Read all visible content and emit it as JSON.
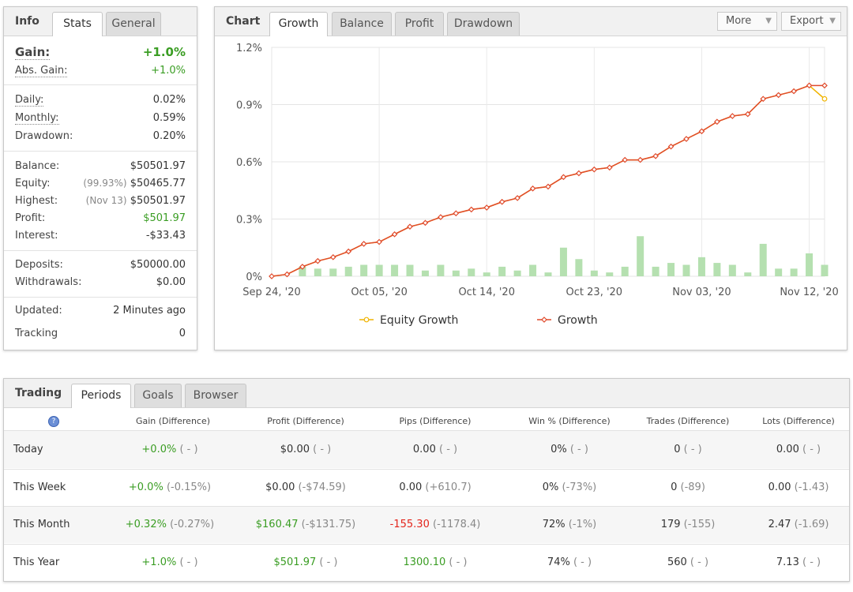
{
  "info": {
    "title": "Info",
    "tabs": [
      "Stats",
      "General"
    ],
    "gain_label": "Gain:",
    "gain_value": "+1.0%",
    "abs_gain_label": "Abs. Gain:",
    "abs_gain_value": "+1.0%",
    "daily_label": "Daily:",
    "daily_value": "0.02%",
    "monthly_label": "Monthly:",
    "monthly_value": "0.59%",
    "drawdown_label": "Drawdown:",
    "drawdown_value": "0.20%",
    "balance_label": "Balance:",
    "balance_value": "$50501.97",
    "equity_label": "Equity:",
    "equity_pct": "(99.93%)",
    "equity_value": "$50465.77",
    "highest_label": "Highest:",
    "highest_date": "(Nov 13)",
    "highest_value": "$50501.97",
    "profit_label": "Profit:",
    "profit_value": "$501.97",
    "interest_label": "Interest:",
    "interest_value": "-$33.43",
    "deposits_label": "Deposits:",
    "deposits_value": "$50000.00",
    "withdrawals_label": "Withdrawals:",
    "withdrawals_value": "$0.00",
    "updated_label": "Updated:",
    "updated_value": "2 Minutes ago",
    "tracking_label": "Tracking",
    "tracking_value": "0"
  },
  "chart_panel": {
    "title": "Chart",
    "tabs": [
      "Growth",
      "Balance",
      "Profit",
      "Drawdown"
    ],
    "more_label": "More",
    "export_label": "Export"
  },
  "chart_data": {
    "type": "line",
    "y_ticks": [
      "1.2%",
      "0.9%",
      "0.6%",
      "0.3%",
      "0%"
    ],
    "ylim": [
      0,
      1.2
    ],
    "x_tick_labels": [
      "Sep 24, '20",
      "Oct 05, '20",
      "Oct 14, '20",
      "Oct 23, '20",
      "Nov 03, '20",
      "Nov 12, '20"
    ],
    "grid": true,
    "legend_position": "bottom",
    "series": [
      {
        "name": "Equity Growth",
        "color": "#f0b400",
        "values": [
          0.0,
          0.01,
          0.05,
          0.08,
          0.1,
          0.13,
          0.17,
          0.18,
          0.22,
          0.26,
          0.28,
          0.31,
          0.33,
          0.35,
          0.36,
          0.39,
          0.41,
          0.46,
          0.47,
          0.52,
          0.54,
          0.56,
          0.57,
          0.61,
          0.61,
          0.63,
          0.68,
          0.72,
          0.76,
          0.81,
          0.84,
          0.85,
          0.93,
          0.95,
          0.97,
          1.0,
          0.93
        ]
      },
      {
        "name": "Growth",
        "color": "#e04a2b",
        "values": [
          0.0,
          0.01,
          0.05,
          0.08,
          0.1,
          0.13,
          0.17,
          0.18,
          0.22,
          0.26,
          0.28,
          0.31,
          0.33,
          0.35,
          0.36,
          0.39,
          0.41,
          0.46,
          0.47,
          0.52,
          0.54,
          0.56,
          0.57,
          0.61,
          0.61,
          0.63,
          0.68,
          0.72,
          0.76,
          0.81,
          0.84,
          0.85,
          0.93,
          0.95,
          0.97,
          1.0,
          1.0
        ]
      }
    ],
    "bars": {
      "color": "#b5e0b0",
      "values": [
        0.0,
        0.0,
        0.05,
        0.04,
        0.04,
        0.05,
        0.06,
        0.06,
        0.06,
        0.06,
        0.03,
        0.06,
        0.03,
        0.04,
        0.02,
        0.05,
        0.03,
        0.06,
        0.02,
        0.15,
        0.09,
        0.03,
        0.02,
        0.05,
        0.21,
        0.05,
        0.07,
        0.06,
        0.1,
        0.07,
        0.06,
        0.02,
        0.17,
        0.04,
        0.04,
        0.12,
        0.06
      ]
    }
  },
  "trading": {
    "title": "Trading",
    "tabs": [
      "Periods",
      "Goals",
      "Browser"
    ],
    "help_icon": "?",
    "headers": [
      "Gain (Difference)",
      "Profit (Difference)",
      "Pips (Difference)",
      "Win % (Difference)",
      "Trades (Difference)",
      "Lots (Difference)"
    ],
    "rows": [
      {
        "period": "Today",
        "gain": "+0.0%",
        "gain_diff": "( - )",
        "profit": "$0.00",
        "profit_diff": "( - )",
        "pips": "0.00",
        "pips_diff": "( - )",
        "win": "0%",
        "win_diff": "( - )",
        "trades": "0",
        "trades_diff": "( - )",
        "lots": "0.00",
        "lots_diff": "( - )"
      },
      {
        "period": "This Week",
        "gain": "+0.0%",
        "gain_diff": "(-0.15%)",
        "profit": "$0.00",
        "profit_diff": "(-$74.59)",
        "pips": "0.00",
        "pips_diff": "(+610.7)",
        "win": "0%",
        "win_diff": "(-73%)",
        "trades": "0",
        "trades_diff": "(-89)",
        "lots": "0.00",
        "lots_diff": "(-1.43)"
      },
      {
        "period": "This Month",
        "gain": "+0.32%",
        "gain_diff": "(-0.27%)",
        "profit": "$160.47",
        "profit_diff": "(-$131.75)",
        "pips": "-155.30",
        "pips_diff": "(-1178.4)",
        "win": "72%",
        "win_diff": "(-1%)",
        "trades": "179",
        "trades_diff": "(-155)",
        "lots": "2.47",
        "lots_diff": "(-1.69)"
      },
      {
        "period": "This Year",
        "gain": "+1.0%",
        "gain_diff": "( - )",
        "profit": "$501.97",
        "profit_diff": "( - )",
        "pips": "1300.10",
        "pips_diff": "( - )",
        "win": "74%",
        "win_diff": "( - )",
        "trades": "560",
        "trades_diff": "( - )",
        "lots": "7.13",
        "lots_diff": "( - )"
      }
    ]
  },
  "colors": {
    "positive": "#3a9d23",
    "negative": "#e3241b",
    "accent": "#2f66c4"
  }
}
